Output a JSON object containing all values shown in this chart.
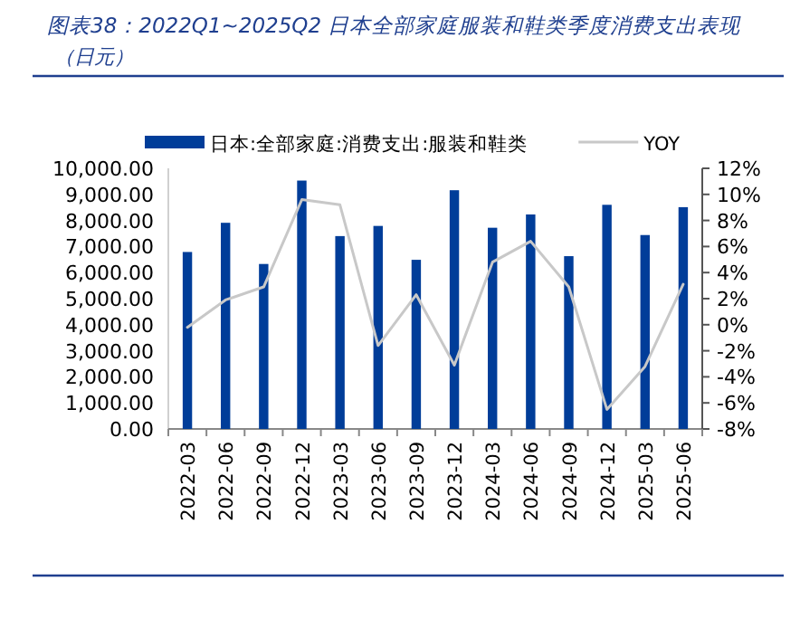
{
  "chart_data": {
    "type": "bar",
    "title": "图表38：2022Q1~2025Q2 日本全部家庭服装和鞋类季度消费支出表现",
    "subtitle": "（日元）",
    "categories": [
      "2022-03",
      "2022-06",
      "2022-09",
      "2022-12",
      "2023-03",
      "2023-06",
      "2023-09",
      "2023-12",
      "2024-03",
      "2024-06",
      "2024-09",
      "2024-12",
      "2025-03",
      "2025-06"
    ],
    "series": [
      {
        "name": "日本:全部家庭:消费支出:服装和鞋类",
        "color": "#003d99",
        "values": [
          6790,
          7910,
          6330,
          9530,
          7400,
          7790,
          6490,
          9160,
          7720,
          8230,
          6630,
          8600,
          7440,
          8510
        ]
      },
      {
        "name": "YOY",
        "type": "line",
        "axis": "y2",
        "color": "#c8c8c8",
        "values": [
          -0.2,
          1.9,
          2.9,
          9.6,
          9.2,
          -1.6,
          2.3,
          -3.1,
          4.8,
          6.4,
          2.9,
          -6.5,
          -3.2,
          3.1
        ]
      }
    ],
    "ylim": [
      0,
      10000
    ],
    "yticks": [
      {
        "value": 0,
        "label": "0.00"
      },
      {
        "value": 1000,
        "label": "1,000.00"
      },
      {
        "value": 2000,
        "label": "2,000.00"
      },
      {
        "value": 3000,
        "label": "3,000.00"
      },
      {
        "value": 4000,
        "label": "4,000.00"
      },
      {
        "value": 5000,
        "label": "5,000.00"
      },
      {
        "value": 6000,
        "label": "6,000.00"
      },
      {
        "value": 7000,
        "label": "7,000.00"
      },
      {
        "value": 8000,
        "label": "8,000.00"
      },
      {
        "value": 9000,
        "label": "9,000.00"
      },
      {
        "value": 10000,
        "label": "10,000.00"
      }
    ],
    "y2lim": [
      -8,
      12
    ],
    "y2ticks": [
      {
        "value": -8,
        "label": "-8%"
      },
      {
        "value": -6,
        "label": "-6%"
      },
      {
        "value": -4,
        "label": "-4%"
      },
      {
        "value": -2,
        "label": "-2%"
      },
      {
        "value": 0,
        "label": "0%"
      },
      {
        "value": 2,
        "label": "2%"
      },
      {
        "value": 4,
        "label": "4%"
      },
      {
        "value": 6,
        "label": "6%"
      },
      {
        "value": 8,
        "label": "8%"
      },
      {
        "value": 10,
        "label": "10%"
      },
      {
        "value": 12,
        "label": "12%"
      }
    ],
    "legend": "top",
    "grid": false
  }
}
